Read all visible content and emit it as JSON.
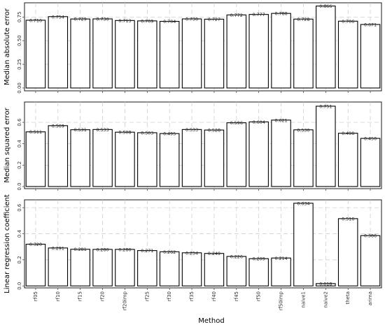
{
  "xlabel": "Method",
  "chart_data": [
    {
      "type": "bar",
      "ylabel": "Median absolute error",
      "categories": [
        "rf05",
        "rf10",
        "rf15",
        "rf20",
        "rf20imp",
        "rf25",
        "rf30",
        "rf35",
        "rf40",
        "rf45",
        "rf50",
        "rf50imp",
        "naive1",
        "naive2",
        "theta",
        "arima"
      ],
      "values": [
        0.716,
        0.754,
        0.729,
        0.73,
        0.713,
        0.709,
        0.704,
        0.73,
        0.727,
        0.772,
        0.777,
        0.788,
        0.728,
        0.866,
        0.706,
        0.671
      ],
      "value_labels": [
        "0.716",
        "0.754",
        "0.729",
        "0.730",
        "0.713",
        "0.709",
        "0.704",
        "0.730",
        "0.727",
        "0.772",
        "0.777",
        "0.788",
        "0.728",
        "0.866",
        "0.706",
        "0.671"
      ],
      "yticks": [
        "0.00",
        "0.25",
        "0.50",
        "0.75"
      ],
      "ytick_values": [
        0,
        0.25,
        0.5,
        0.75
      ],
      "ylim": [
        -0.03,
        0.9
      ],
      "grid": true
    },
    {
      "type": "bar",
      "ylabel": "Median squared error",
      "categories": [
        "rf05",
        "rf10",
        "rf15",
        "rf20",
        "rf20imp",
        "rf25",
        "rf30",
        "rf35",
        "rf40",
        "rf45",
        "rf50",
        "rf50imp",
        "naive1",
        "naive2",
        "theta",
        "arima"
      ],
      "values": [
        0.511,
        0.569,
        0.531,
        0.533,
        0.508,
        0.503,
        0.495,
        0.533,
        0.528,
        0.596,
        0.604,
        0.621,
        0.53,
        0.751,
        0.498,
        0.45
      ],
      "value_labels": [
        "0.511",
        "0.569",
        "0.531",
        "0.533",
        "0.508",
        "0.503",
        "0.495",
        "0.533",
        "0.528",
        "0.596",
        "0.604",
        "0.621",
        "0.530",
        "0.751",
        "0.498",
        "0.450"
      ],
      "yticks": [
        "0.0",
        "0.2",
        "0.4",
        "0.6"
      ],
      "ytick_values": [
        0,
        0.2,
        0.4,
        0.6
      ],
      "ylim": [
        -0.02,
        0.79
      ],
      "grid": true
    },
    {
      "type": "bar",
      "ylabel": "Linear regression coefficient",
      "categories": [
        "rf05",
        "rf10",
        "rf15",
        "rf20",
        "rf20imp",
        "rf25",
        "rf30",
        "rf35",
        "rf40",
        "rf45",
        "rf50",
        "rf50imp",
        "naive1",
        "naive2",
        "theta",
        "arima"
      ],
      "values": [
        0.32,
        0.291,
        0.281,
        0.28,
        0.28,
        0.271,
        0.262,
        0.254,
        0.249,
        0.226,
        0.209,
        0.214,
        0.634,
        0.018,
        0.516,
        0.386
      ],
      "value_labels": [
        "0.320",
        "0.291",
        "0.281",
        "0.280",
        "0.280",
        "0.271",
        "0.262",
        "0.254",
        "0.249",
        "0.226",
        "0.209",
        "0.214",
        "0.634",
        "0.018",
        "0.516",
        "0.386"
      ],
      "yticks": [
        "0.0",
        "0.2",
        "0.4",
        "0.6"
      ],
      "ytick_values": [
        0,
        0.2,
        0.4,
        0.6
      ],
      "ylim": [
        -0.015,
        0.66
      ],
      "grid": true
    }
  ]
}
